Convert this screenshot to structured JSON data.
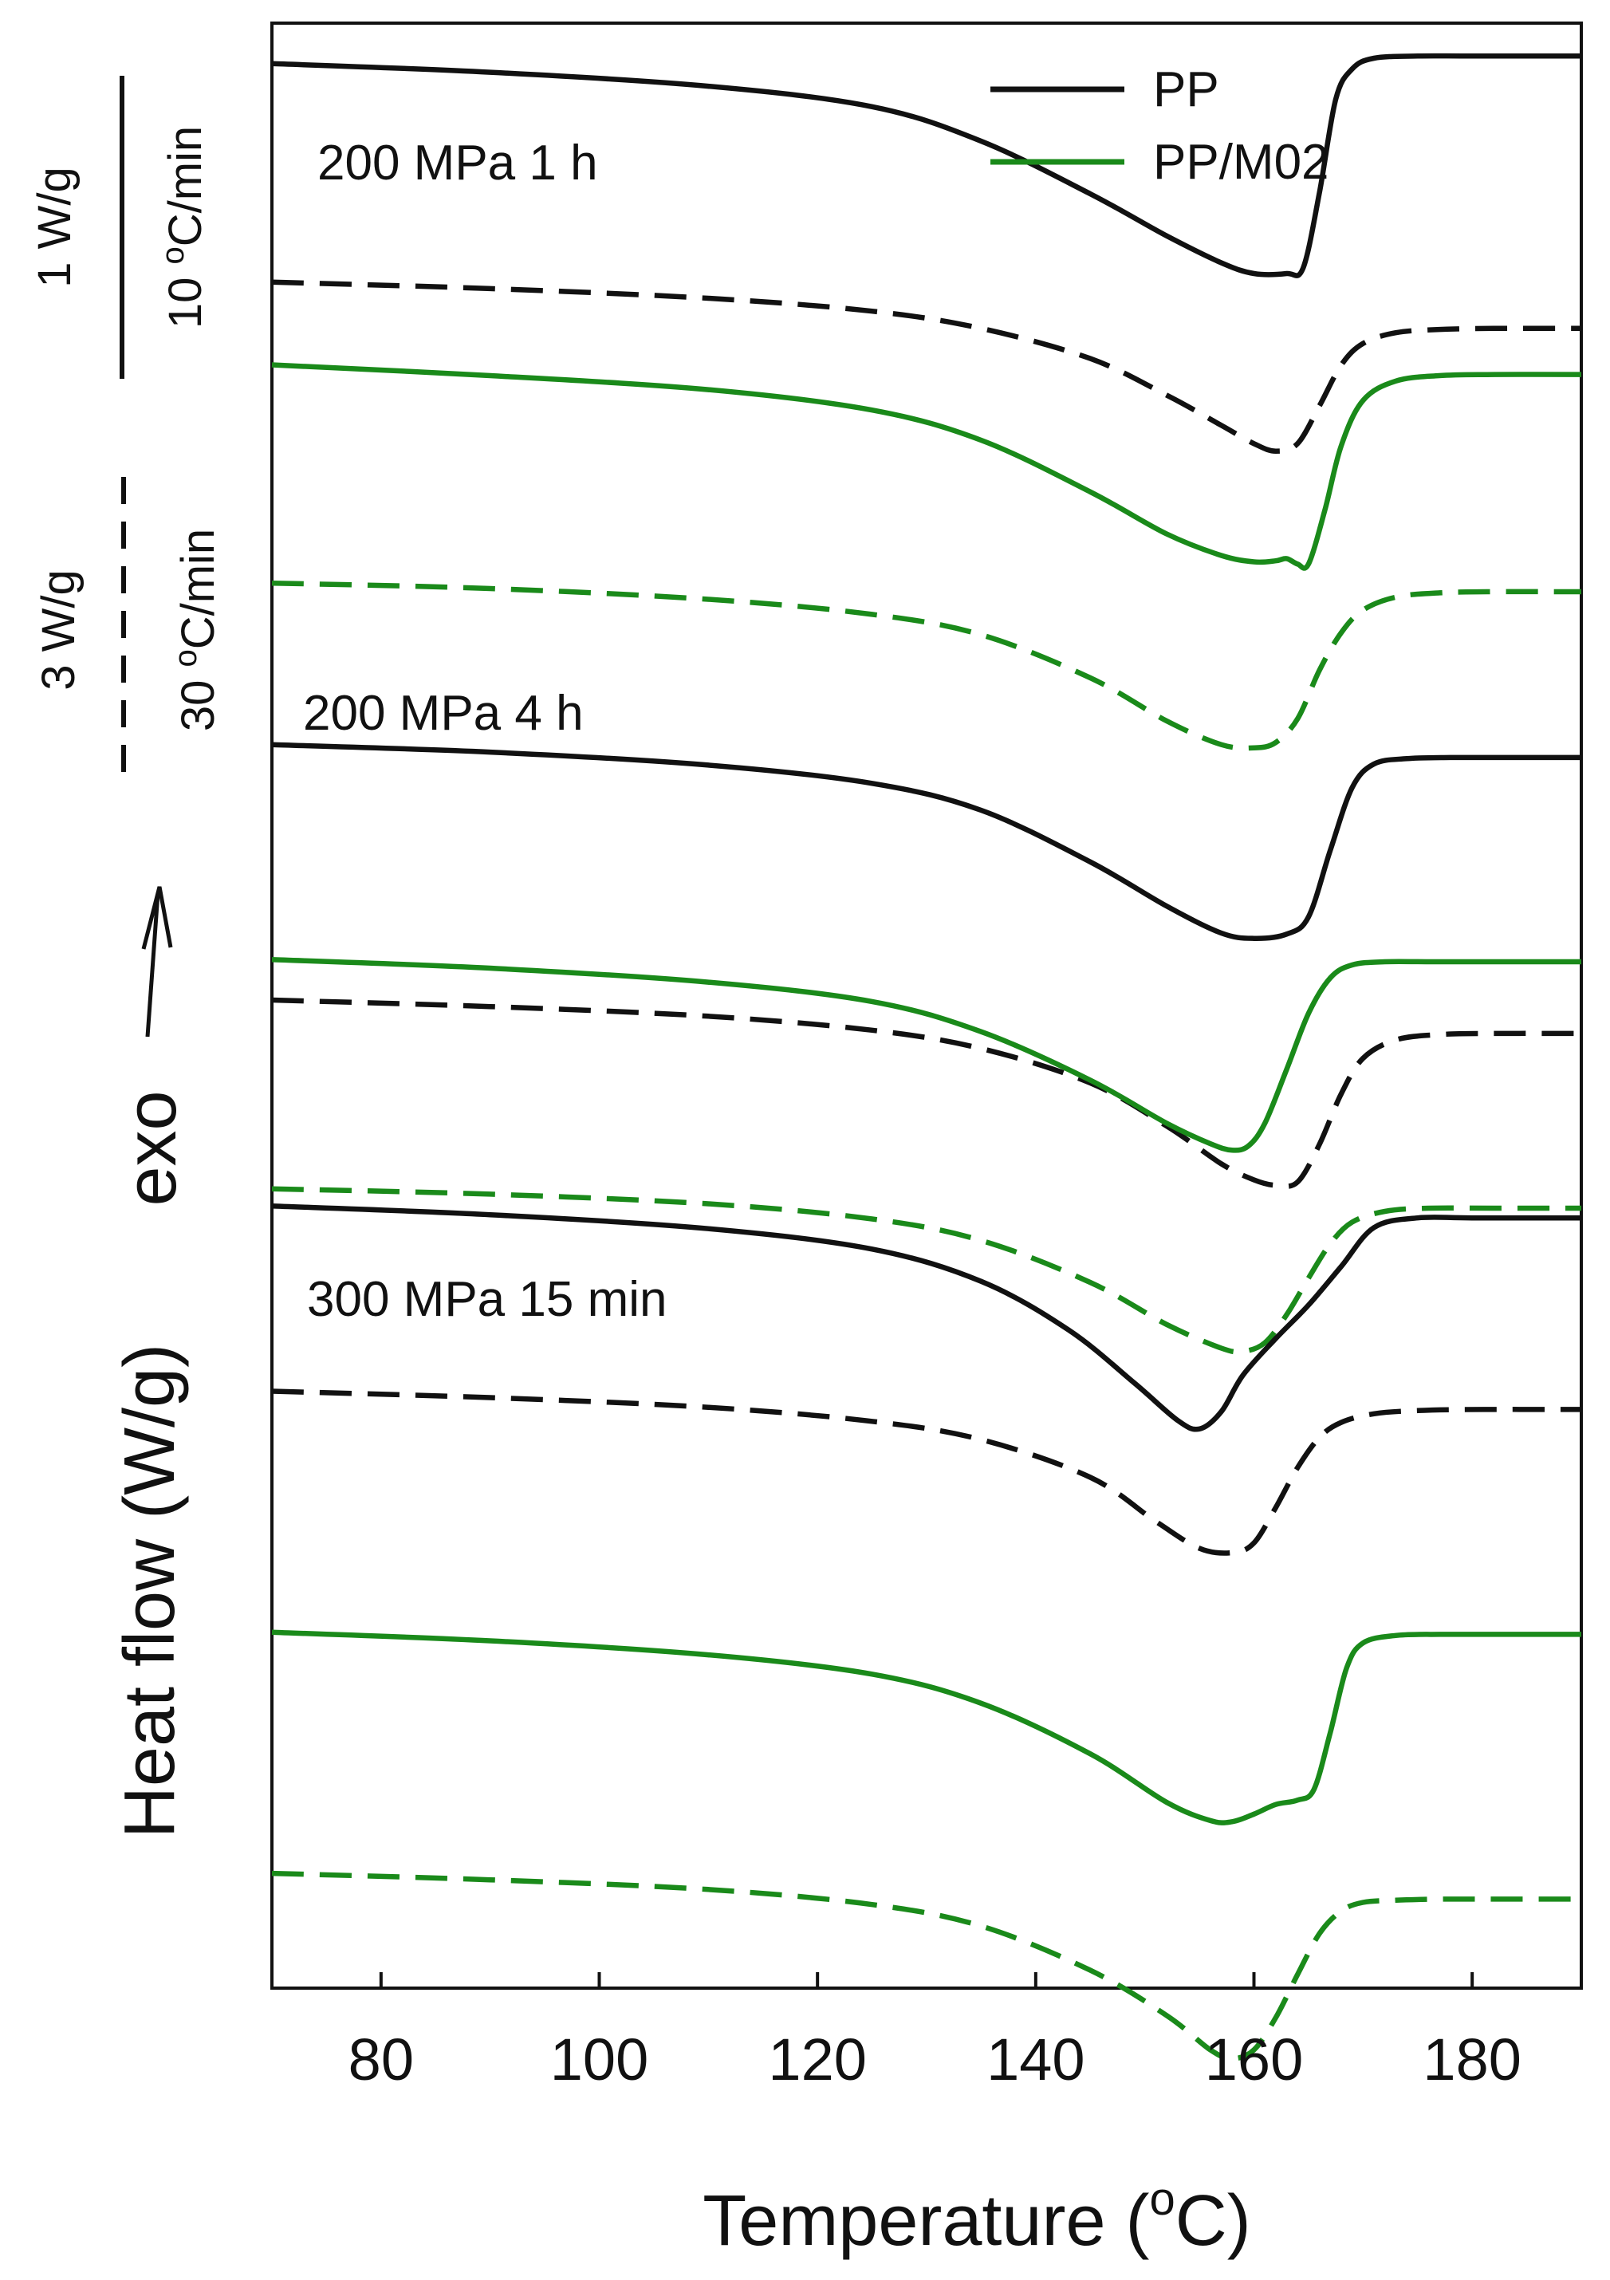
{
  "colors": {
    "pp": "#111111",
    "ppm02": "#1a8a1a",
    "axis": "#111111"
  },
  "chart_data": {
    "type": "line",
    "xlabel": "Temperature (°C)",
    "xlabel_prefix": "Temperature (",
    "xlabel_degree": "o",
    "xlabel_unit": "C)",
    "ylabel": "Heat flow (W/g)",
    "x_ticks": [
      80,
      100,
      120,
      140,
      160,
      180
    ],
    "xlim": [
      70,
      190
    ],
    "y_ticks": "none (curves vertically offset)",
    "exo_label": "exo",
    "legend": [
      {
        "name": "PP",
        "color": "#111111"
      },
      {
        "name": "PP/M02",
        "color": "#1a8a1a"
      }
    ],
    "scale_bars": [
      {
        "style": "solid",
        "value": "1 W/g",
        "rate": "10 °C/min",
        "rate_num": "10 ",
        "rate_deg": "o",
        "rate_unit": "C/min"
      },
      {
        "style": "dashed",
        "value": "3 W/g",
        "rate": "30 °C/min",
        "rate_num": "30 ",
        "rate_deg": "o",
        "rate_unit": "C/min"
      }
    ],
    "annotations": [
      "200 MPa 1 h",
      "200 MPa 4 h",
      "300 MPa 15 min"
    ],
    "series": [
      {
        "name": "PP 200 MPa 1 h 10 °C/min",
        "material": "PP",
        "style": "solid",
        "x": [
          70,
          90,
          110,
          125,
          135,
          145,
          152,
          157,
          160,
          163,
          164.5,
          166,
          167.5,
          169,
          171,
          175,
          180,
          190
        ],
        "y": [
          2.15,
          2.07,
          1.94,
          1.75,
          1.43,
          0.94,
          0.55,
          0.3,
          0.2,
          0.2,
          0.25,
          0.95,
          1.82,
          2.1,
          2.2,
          2.22,
          2.22,
          2.22
        ]
      },
      {
        "name": "PP 200 MPa 1 h 30 °C/min",
        "material": "PP",
        "style": "dashed",
        "x": [
          70,
          90,
          110,
          125,
          135,
          145,
          152,
          157,
          160,
          162,
          164,
          166,
          168,
          170,
          173,
          177,
          182,
          190
        ],
        "y": [
          1.75,
          1.69,
          1.6,
          1.48,
          1.32,
          1.04,
          0.7,
          0.42,
          0.25,
          0.18,
          0.25,
          0.6,
          0.98,
          1.18,
          1.28,
          1.31,
          1.32,
          1.32
        ]
      },
      {
        "name": "PP/M02 200 MPa 1 h 10 °C/min",
        "material": "PP/M02",
        "style": "solid",
        "x": [
          70,
          90,
          110,
          125,
          135,
          145,
          152,
          157,
          160,
          162,
          163,
          164,
          165,
          166.5,
          168,
          170,
          173,
          177,
          182,
          190
        ],
        "y": [
          2.3,
          2.2,
          2.07,
          1.88,
          1.6,
          1.12,
          0.73,
          0.53,
          0.47,
          0.48,
          0.5,
          0.45,
          0.45,
          0.95,
          1.55,
          1.97,
          2.15,
          2.2,
          2.21,
          2.21
        ]
      },
      {
        "name": "PP/M02 200 MPa 1 h 30 °C/min",
        "material": "PP/M02",
        "style": "dashed",
        "x": [
          70,
          90,
          110,
          125,
          135,
          145,
          152,
          157,
          160,
          162,
          164,
          166,
          168,
          170,
          173,
          177,
          182,
          190
        ],
        "y": [
          1.88,
          1.83,
          1.73,
          1.59,
          1.4,
          1.0,
          0.6,
          0.38,
          0.35,
          0.4,
          0.62,
          1.07,
          1.42,
          1.63,
          1.75,
          1.79,
          1.8,
          1.8
        ]
      },
      {
        "name": "PP 200 MPa 4 h 10 °C/min",
        "material": "PP",
        "style": "solid",
        "x": [
          70,
          90,
          110,
          125,
          135,
          145,
          152,
          157,
          160,
          163,
          165,
          167,
          169,
          171,
          174,
          178,
          183,
          190
        ],
        "y": [
          2.38,
          2.31,
          2.19,
          2.02,
          1.77,
          1.29,
          0.88,
          0.63,
          0.58,
          0.62,
          0.78,
          1.4,
          1.98,
          2.2,
          2.25,
          2.26,
          2.26,
          2.26
        ]
      },
      {
        "name": "PP 200 MPa 4 h 30 °C/min",
        "material": "PP",
        "style": "dashed",
        "x": [
          70,
          90,
          110,
          125,
          135,
          145,
          152,
          157,
          160,
          162,
          164,
          166,
          168,
          170,
          173,
          177,
          182,
          190
        ],
        "y": [
          1.97,
          1.91,
          1.82,
          1.69,
          1.52,
          1.2,
          0.8,
          0.45,
          0.3,
          0.25,
          0.28,
          0.63,
          1.1,
          1.43,
          1.6,
          1.65,
          1.66,
          1.66
        ]
      },
      {
        "name": "PP/M02 200 MPa 4 h 10 °C/min",
        "material": "PP/M02",
        "style": "solid",
        "x": [
          70,
          90,
          110,
          125,
          135,
          145,
          152,
          156,
          158,
          159.5,
          161,
          163,
          165,
          167,
          169,
          172,
          176,
          182,
          190
        ],
        "y": [
          2.05,
          1.97,
          1.84,
          1.66,
          1.38,
          0.93,
          0.53,
          0.34,
          0.28,
          0.32,
          0.53,
          1.03,
          1.55,
          1.88,
          2.0,
          2.03,
          2.03,
          2.03,
          2.03
        ]
      },
      {
        "name": "PP/M02 200 MPa 4 h 30 °C/min",
        "material": "PP/M02",
        "style": "dashed",
        "x": [
          70,
          90,
          110,
          125,
          135,
          145,
          152,
          157,
          159,
          161,
          163,
          165,
          167,
          169,
          172,
          176,
          182,
          190
        ],
        "y": [
          1.81,
          1.76,
          1.67,
          1.53,
          1.33,
          0.94,
          0.55,
          0.33,
          0.3,
          0.38,
          0.64,
          0.98,
          1.3,
          1.5,
          1.6,
          1.63,
          1.63,
          1.63
        ]
      },
      {
        "name": "PP 300 MPa 15 min 10 °C/min",
        "material": "PP",
        "style": "solid",
        "x": [
          70,
          90,
          110,
          125,
          135,
          143,
          149,
          153,
          155,
          157,
          159,
          162,
          165,
          168,
          171,
          175,
          180,
          190
        ],
        "y": [
          2.19,
          2.11,
          1.98,
          1.79,
          1.49,
          1.04,
          0.55,
          0.2,
          0.12,
          0.28,
          0.62,
          0.96,
          1.27,
          1.63,
          1.99,
          2.08,
          2.08,
          2.08
        ]
      },
      {
        "name": "PP 300 MPa 15 min 30 °C/min",
        "material": "PP",
        "style": "dashed",
        "x": [
          70,
          90,
          110,
          125,
          135,
          145,
          151,
          155,
          158,
          160,
          162,
          164,
          166,
          168,
          171,
          175,
          181,
          190
        ],
        "y": [
          1.93,
          1.87,
          1.78,
          1.65,
          1.48,
          1.13,
          0.72,
          0.47,
          0.43,
          0.52,
          0.85,
          1.22,
          1.5,
          1.64,
          1.72,
          1.75,
          1.76,
          1.76
        ]
      },
      {
        "name": "PP/M02 300 MPa 15 min 10 °C/min",
        "material": "PP/M02",
        "style": "solid",
        "x": [
          70,
          90,
          110,
          125,
          135,
          145,
          152,
          156,
          158,
          160,
          162,
          164,
          165.5,
          167,
          168.5,
          170,
          173,
          177,
          182,
          190
        ],
        "y": [
          2.38,
          2.3,
          2.17,
          1.99,
          1.72,
          1.25,
          0.8,
          0.63,
          0.62,
          0.69,
          0.78,
          0.82,
          0.92,
          1.45,
          2.05,
          2.28,
          2.35,
          2.36,
          2.36,
          2.36
        ]
      },
      {
        "name": "PP/M02 300 MPa 15 min 30 °C/min",
        "material": "PP/M02",
        "style": "dashed",
        "x": [
          70,
          90,
          110,
          125,
          135,
          145,
          152,
          156,
          158,
          160,
          162,
          164,
          166,
          168,
          170,
          173,
          177,
          182,
          190
        ],
        "y": [
          1.97,
          1.91,
          1.82,
          1.68,
          1.48,
          1.07,
          0.65,
          0.33,
          0.25,
          0.33,
          0.63,
          1.03,
          1.41,
          1.62,
          1.7,
          1.72,
          1.73,
          1.73,
          1.73
        ]
      }
    ]
  }
}
